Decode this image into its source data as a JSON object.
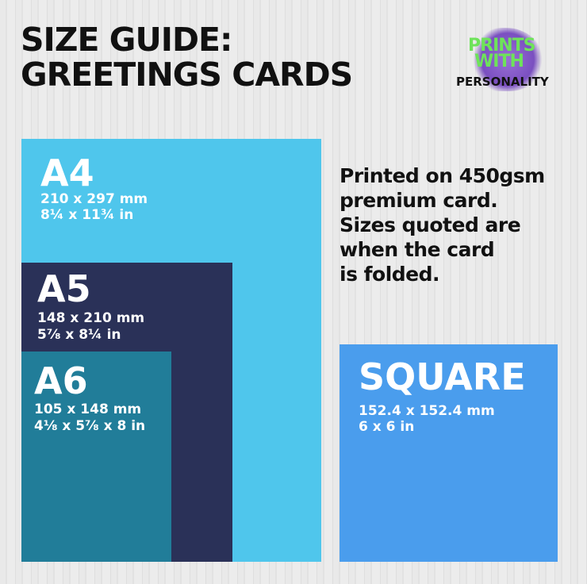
{
  "title": {
    "line1": "SIZE GUIDE:",
    "line2": "GREETINGS CARDS"
  },
  "logo": {
    "line1": "PRINTS",
    "line2": "WITH",
    "line3": "PERSONALITY",
    "colors": {
      "green": "#6ee35a",
      "purple": "#7a4fc0"
    }
  },
  "sizes": {
    "a4": {
      "name": "A4",
      "mm": "210 x 297 mm",
      "in": "8¼ x 11¾ in",
      "color": "#4fc6ec"
    },
    "a5": {
      "name": "A5",
      "mm": "148 x 210 mm",
      "in": "5⅞ x 8¼ in",
      "color": "#2a3158"
    },
    "a6": {
      "name": "A6",
      "mm": "105 x 148 mm",
      "in": "4⅛ x 5⅞ x  8 in",
      "color": "#217d99"
    },
    "square": {
      "name": "SQUARE",
      "mm": "152.4 x 152.4 mm",
      "in": "6 x 6 in",
      "color": "#4a9ded"
    }
  },
  "note": [
    "Printed on 450gsm",
    "premium card.",
    "Sizes quoted are",
    "when the card",
    "is folded."
  ]
}
